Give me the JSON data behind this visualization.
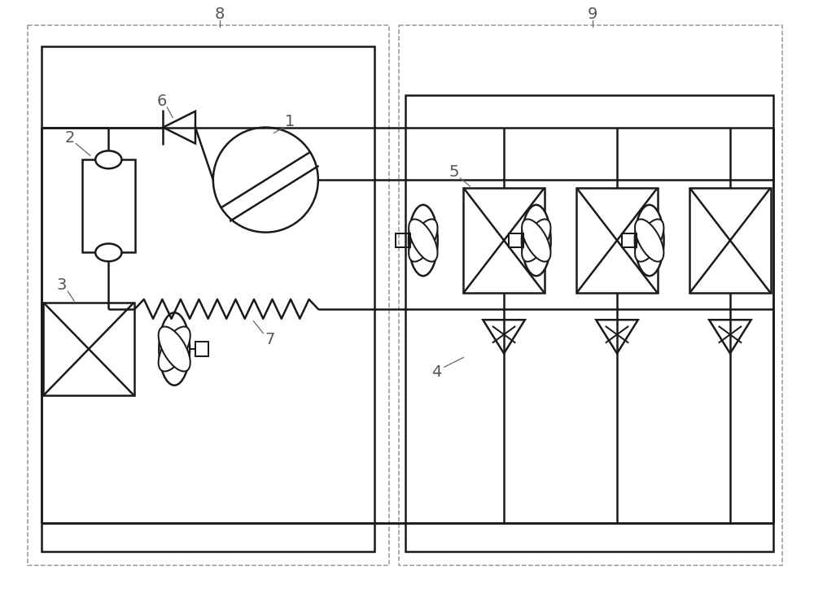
{
  "bg_color": "#ffffff",
  "line_color": "#1a1a1a",
  "dash_color": "#999999",
  "fig_width": 10.0,
  "fig_height": 7.29,
  "dpi": 100
}
